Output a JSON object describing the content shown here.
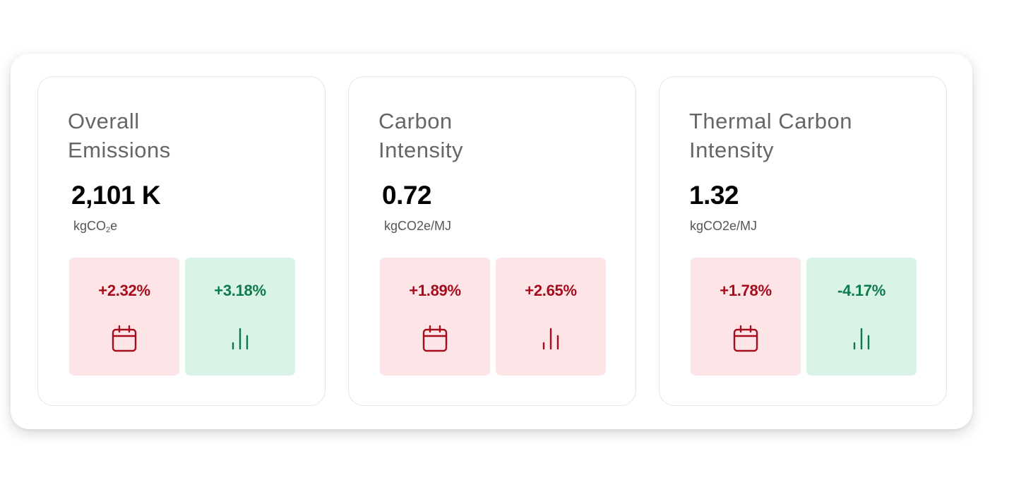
{
  "cards": [
    {
      "title_line1": "Overall",
      "title_line2": "Emissions",
      "value": "2,101 K",
      "unit_prefix": "kgCO",
      "unit_sub": "2",
      "unit_suffix": "e",
      "tiles": [
        {
          "change": "+2.32%",
          "icon": "calendar-icon",
          "tone": "negative",
          "color": "#a50d1c"
        },
        {
          "change": "+3.18%",
          "icon": "bar-chart-icon",
          "tone": "positive",
          "color": "#0d7a4a"
        }
      ]
    },
    {
      "title_line1": "Carbon",
      "title_line2": "Intensity",
      "value": "0.72",
      "unit": "kgCO2e/MJ",
      "tiles": [
        {
          "change": "+1.89%",
          "icon": "calendar-icon",
          "tone": "negative",
          "color": "#a50d1c"
        },
        {
          "change": "+2.65%",
          "icon": "bar-chart-icon",
          "tone": "negative",
          "color": "#a50d1c"
        }
      ]
    },
    {
      "title_line1": "Thermal Carbon",
      "title_line2": "Intensity",
      "value": "1.32",
      "unit": "kgCO2e/MJ",
      "tiles": [
        {
          "change": "+1.78%",
          "icon": "calendar-icon",
          "tone": "negative",
          "color": "#a50d1c"
        },
        {
          "change": "-4.17%",
          "icon": "bar-chart-icon",
          "tone": "positive",
          "color": "#0d7a4a"
        }
      ]
    }
  ],
  "colors": {
    "negative_bg": "#fde4e6",
    "negative_fg": "#a50d1c",
    "positive_bg": "#d9f4e6",
    "positive_fg": "#0d7a4a"
  }
}
